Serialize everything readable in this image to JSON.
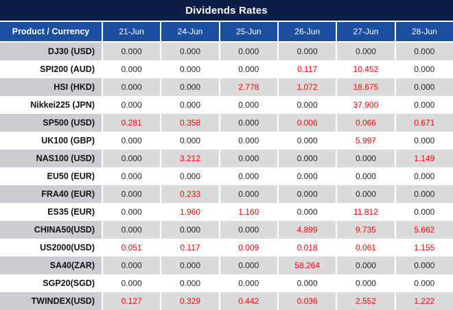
{
  "title": "Dividends Rates",
  "colors": {
    "title_bg": "#0B1E45",
    "header_bg": "#1D4FA1",
    "header_text": "#FFFFFF",
    "gray_row_label_bg": "#CBCDD3",
    "gray_row_value_bg": "#DBDBDB",
    "white_row_bg": "#FFFFFF",
    "value_black": "#1E1E1E",
    "value_red": "#FF0000"
  },
  "table": {
    "product_header": "Product / Currency",
    "date_headers": [
      "21-Jun",
      "24-Jun",
      "25-Jun",
      "26-Jun",
      "27-Jun",
      "28-Jun"
    ],
    "rows": [
      {
        "product": "DJ30 (USD)",
        "values": [
          "0.000",
          "0.000",
          "0.000",
          "0.000",
          "0.000",
          "0.000"
        ],
        "red": [
          false,
          false,
          false,
          false,
          false,
          false
        ]
      },
      {
        "product": "SPI200 (AUD)",
        "values": [
          "0.000",
          "0.000",
          "0.000",
          "0.117",
          "10.452",
          "0.000"
        ],
        "red": [
          false,
          false,
          false,
          true,
          true,
          false
        ]
      },
      {
        "product": "HSI (HKD)",
        "values": [
          "0.000",
          "0.000",
          "2.778",
          "1.072",
          "18.675",
          "0.000"
        ],
        "red": [
          false,
          false,
          true,
          true,
          true,
          false
        ]
      },
      {
        "product": "Nikkei225 (JPN)",
        "values": [
          "0.000",
          "0.000",
          "0.000",
          "0.000",
          "37.900",
          "0.000"
        ],
        "red": [
          false,
          false,
          false,
          false,
          true,
          false
        ]
      },
      {
        "product": "SP500 (USD)",
        "values": [
          "0.281",
          "0.358",
          "0.000",
          "0.006",
          "0.066",
          "0.671"
        ],
        "red": [
          true,
          true,
          false,
          true,
          true,
          true
        ]
      },
      {
        "product": "UK100 (GBP)",
        "values": [
          "0.000",
          "0.000",
          "0.000",
          "0.000",
          "5.997",
          "0.000"
        ],
        "red": [
          false,
          false,
          false,
          false,
          true,
          false
        ]
      },
      {
        "product": "NAS100 (USD)",
        "values": [
          "0.000",
          "3.212",
          "0.000",
          "0.000",
          "0.000",
          "1.149"
        ],
        "red": [
          false,
          true,
          false,
          false,
          false,
          true
        ]
      },
      {
        "product": "EU50 (EUR)",
        "values": [
          "0.000",
          "0.000",
          "0.000",
          "0.000",
          "0.000",
          "0.000"
        ],
        "red": [
          false,
          false,
          false,
          false,
          false,
          false
        ]
      },
      {
        "product": "FRA40 (EUR)",
        "values": [
          "0.000",
          "0.233",
          "0.000",
          "0.000",
          "0.000",
          "0.000"
        ],
        "red": [
          false,
          true,
          false,
          false,
          false,
          false
        ]
      },
      {
        "product": "ES35 (EUR)",
        "values": [
          "0.000",
          "1.960",
          "1.160",
          "0.000",
          "11.812",
          "0.000"
        ],
        "red": [
          false,
          true,
          true,
          false,
          true,
          false
        ]
      },
      {
        "product": "CHINA50(USD)",
        "values": [
          "0.000",
          "0.000",
          "0.000",
          "4.899",
          "9.735",
          "5.662"
        ],
        "red": [
          false,
          false,
          false,
          true,
          true,
          true
        ]
      },
      {
        "product": "US2000(USD)",
        "values": [
          "0.051",
          "0.117",
          "0.009",
          "0.018",
          "0.061",
          "1.155"
        ],
        "red": [
          true,
          true,
          true,
          true,
          true,
          true
        ]
      },
      {
        "product": "SA40(ZAR)",
        "values": [
          "0.000",
          "0.000",
          "0.000",
          "58.264",
          "0.000",
          "0.000"
        ],
        "red": [
          false,
          false,
          false,
          true,
          false,
          false
        ]
      },
      {
        "product": "SGP20(SGD)",
        "values": [
          "0.000",
          "0.000",
          "0.000",
          "0.000",
          "0.000",
          "0.000"
        ],
        "red": [
          false,
          false,
          false,
          false,
          false,
          false
        ]
      },
      {
        "product": "TWINDEX(USD)",
        "values": [
          "0.127",
          "0.329",
          "0.442",
          "0.036",
          "2.552",
          "1.222"
        ],
        "red": [
          true,
          true,
          true,
          true,
          true,
          true
        ]
      }
    ]
  }
}
